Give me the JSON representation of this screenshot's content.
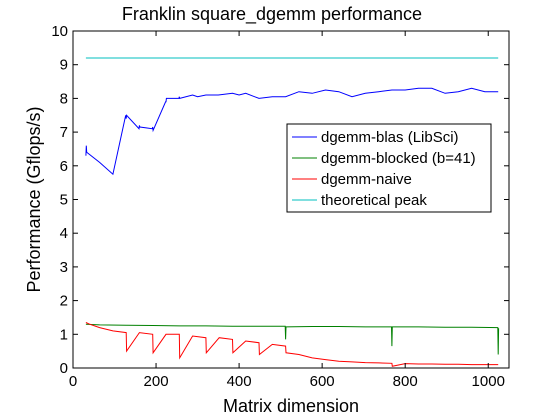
{
  "chart_data": {
    "type": "line",
    "title": "Franklin square_dgemm performance",
    "xlabel": "Matrix dimension",
    "ylabel": "Performance (Gflops/s)",
    "xlim": [
      0,
      1050
    ],
    "ylim": [
      0,
      10
    ],
    "xticks": [
      0,
      200,
      400,
      600,
      800,
      1000
    ],
    "yticks": [
      0,
      1,
      2,
      3,
      4,
      5,
      6,
      7,
      8,
      9,
      10
    ],
    "grid": false,
    "legend_position": "right",
    "series": [
      {
        "name": "dgemm-blas (LibSci)",
        "color": "#0000ff",
        "x": [
          31,
          32,
          33,
          64,
          96,
          127,
          128,
          129,
          159,
          160,
          161,
          191,
          192,
          193,
          223,
          224,
          225,
          255,
          256,
          257,
          288,
          300,
          320,
          350,
          384,
          400,
          416,
          448,
          480,
          512,
          544,
          576,
          608,
          640,
          672,
          704,
          736,
          768,
          800,
          832,
          864,
          896,
          928,
          960,
          992,
          1024
        ],
        "y": [
          6.3,
          6.6,
          6.4,
          6.1,
          5.75,
          7.5,
          7.4,
          7.5,
          7.1,
          7.2,
          7.15,
          7.1,
          7.15,
          7.05,
          7.9,
          7.9,
          8.0,
          8.0,
          8.05,
          8.0,
          8.1,
          8.05,
          8.1,
          8.1,
          8.15,
          8.1,
          8.15,
          8.0,
          8.05,
          8.05,
          8.2,
          8.15,
          8.25,
          8.2,
          8.05,
          8.15,
          8.2,
          8.25,
          8.25,
          8.3,
          8.3,
          8.15,
          8.2,
          8.3,
          8.2,
          8.2
        ]
      },
      {
        "name": "dgemm-blocked (b=41)",
        "color": "#008000",
        "x": [
          31,
          64,
          128,
          192,
          256,
          320,
          384,
          448,
          511,
          512,
          513,
          576,
          640,
          704,
          767,
          768,
          769,
          832,
          896,
          960,
          1023,
          1024,
          1025
        ],
        "y": [
          1.3,
          1.28,
          1.27,
          1.26,
          1.25,
          1.25,
          1.24,
          1.24,
          1.24,
          0.85,
          1.22,
          1.23,
          1.23,
          1.22,
          1.22,
          0.65,
          1.22,
          1.22,
          1.21,
          1.21,
          1.2,
          0.4,
          1.18
        ]
      },
      {
        "name": "dgemm-naive",
        "color": "#ff0000",
        "x": [
          31,
          40,
          64,
          96,
          128,
          129,
          160,
          192,
          193,
          224,
          256,
          257,
          288,
          320,
          321,
          352,
          384,
          385,
          416,
          448,
          449,
          480,
          512,
          513,
          544,
          576,
          608,
          640,
          672,
          704,
          736,
          768,
          769,
          800,
          832,
          864,
          896,
          928,
          960,
          992,
          1024
        ],
        "y": [
          1.35,
          1.3,
          1.2,
          1.1,
          1.05,
          0.5,
          1.05,
          1.0,
          0.45,
          1.0,
          1.0,
          0.3,
          0.95,
          0.9,
          0.45,
          0.9,
          0.85,
          0.45,
          0.8,
          0.75,
          0.4,
          0.7,
          0.65,
          0.45,
          0.4,
          0.3,
          0.25,
          0.2,
          0.18,
          0.16,
          0.15,
          0.14,
          0.05,
          0.13,
          0.12,
          0.12,
          0.11,
          0.11,
          0.1,
          0.1,
          0.1
        ]
      },
      {
        "name": "theoretical peak",
        "color": "#00bfbf",
        "x": [
          31,
          1024
        ],
        "y": [
          9.2,
          9.2
        ]
      }
    ]
  }
}
